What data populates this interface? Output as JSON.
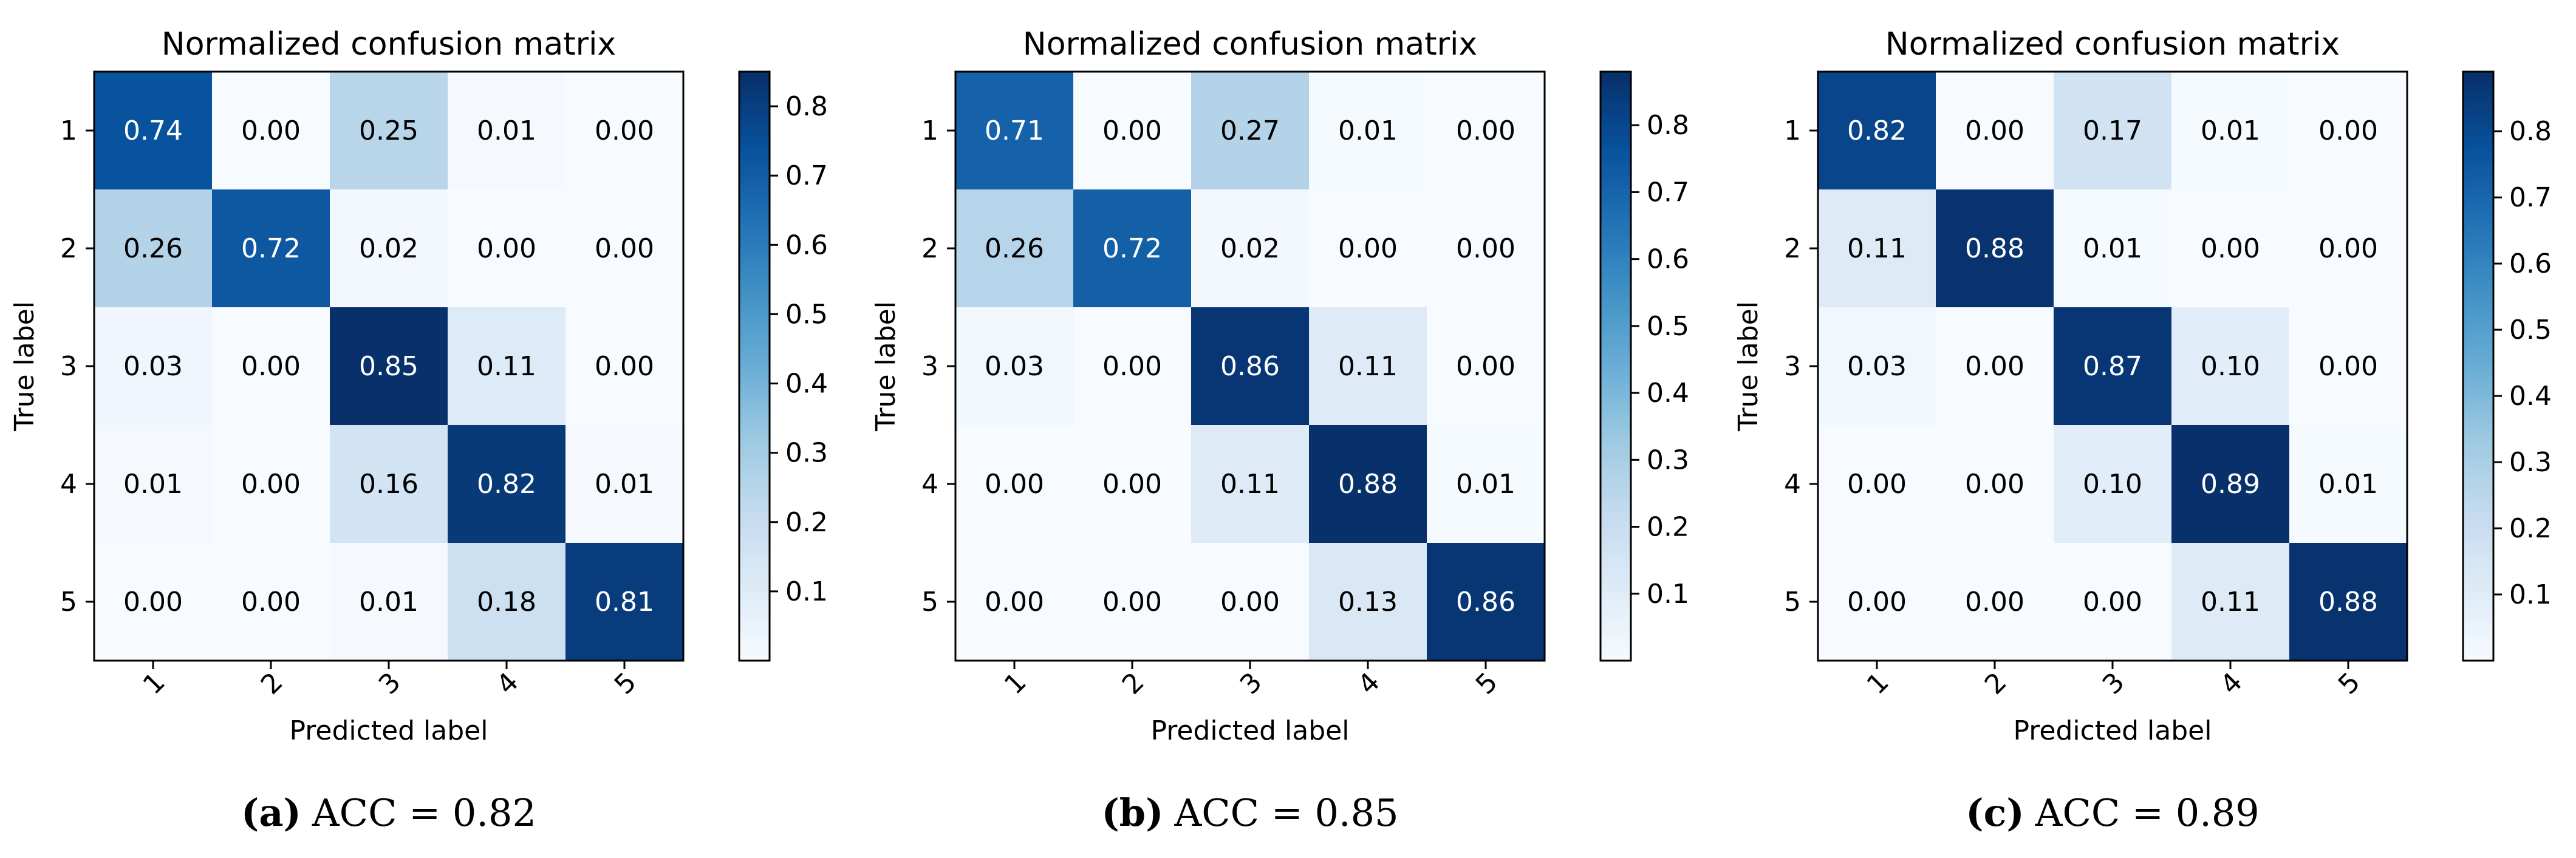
{
  "chart_data": [
    {
      "type": "heatmap",
      "title": "Normalized confusion matrix",
      "xlabel": "Predicted label",
      "ylabel": "True label",
      "x_ticks": [
        "1",
        "2",
        "3",
        "4",
        "5"
      ],
      "y_ticks": [
        "1",
        "2",
        "3",
        "4",
        "5"
      ],
      "matrix": [
        [
          0.74,
          0.0,
          0.25,
          0.01,
          0.0
        ],
        [
          0.26,
          0.72,
          0.02,
          0.0,
          0.0
        ],
        [
          0.03,
          0.0,
          0.85,
          0.11,
          0.0
        ],
        [
          0.01,
          0.0,
          0.16,
          0.82,
          0.01
        ],
        [
          0.0,
          0.0,
          0.01,
          0.18,
          0.81
        ]
      ],
      "cell_labels": [
        [
          "0.74",
          "0.00",
          "0.25",
          "0.01",
          "0.00"
        ],
        [
          "0.26",
          "0.72",
          "0.02",
          "0.00",
          "0.00"
        ],
        [
          "0.03",
          "0.00",
          "0.85",
          "0.11",
          "0.00"
        ],
        [
          "0.01",
          "0.00",
          "0.16",
          "0.82",
          "0.01"
        ],
        [
          "0.00",
          "0.00",
          "0.01",
          "0.18",
          "0.81"
        ]
      ],
      "colorbar": {
        "min": 0.0,
        "max": 0.85,
        "ticks": [
          "0.1",
          "0.2",
          "0.3",
          "0.4",
          "0.5",
          "0.6",
          "0.7",
          "0.8"
        ]
      },
      "colormap": "Blues",
      "grid": false,
      "caption": {
        "letter": "(a)",
        "text": "ACC = 0.82"
      }
    },
    {
      "type": "heatmap",
      "title": "Normalized confusion matrix",
      "xlabel": "Predicted label",
      "ylabel": "True label",
      "x_ticks": [
        "1",
        "2",
        "3",
        "4",
        "5"
      ],
      "y_ticks": [
        "1",
        "2",
        "3",
        "4",
        "5"
      ],
      "matrix": [
        [
          0.71,
          0.0,
          0.27,
          0.01,
          0.0
        ],
        [
          0.26,
          0.72,
          0.02,
          0.0,
          0.0
        ],
        [
          0.03,
          0.0,
          0.86,
          0.11,
          0.0
        ],
        [
          0.0,
          0.0,
          0.11,
          0.88,
          0.01
        ],
        [
          0.0,
          0.0,
          0.0,
          0.13,
          0.86
        ]
      ],
      "cell_labels": [
        [
          "0.71",
          "0.00",
          "0.27",
          "0.01",
          "0.00"
        ],
        [
          "0.26",
          "0.72",
          "0.02",
          "0.00",
          "0.00"
        ],
        [
          "0.03",
          "0.00",
          "0.86",
          "0.11",
          "0.00"
        ],
        [
          "0.00",
          "0.00",
          "0.11",
          "0.88",
          "0.01"
        ],
        [
          "0.00",
          "0.00",
          "0.00",
          "0.13",
          "0.86"
        ]
      ],
      "colorbar": {
        "min": 0.0,
        "max": 0.88,
        "ticks": [
          "0.1",
          "0.2",
          "0.3",
          "0.4",
          "0.5",
          "0.6",
          "0.7",
          "0.8"
        ]
      },
      "colormap": "Blues",
      "grid": false,
      "caption": {
        "letter": "(b)",
        "text": "ACC = 0.85"
      }
    },
    {
      "type": "heatmap",
      "title": "Normalized confusion matrix",
      "xlabel": "Predicted label",
      "ylabel": "True label",
      "x_ticks": [
        "1",
        "2",
        "3",
        "4",
        "5"
      ],
      "y_ticks": [
        "1",
        "2",
        "3",
        "4",
        "5"
      ],
      "matrix": [
        [
          0.82,
          0.0,
          0.17,
          0.01,
          0.0
        ],
        [
          0.11,
          0.88,
          0.01,
          0.0,
          0.0
        ],
        [
          0.03,
          0.0,
          0.87,
          0.1,
          0.0
        ],
        [
          0.0,
          0.0,
          0.1,
          0.89,
          0.01
        ],
        [
          0.0,
          0.0,
          0.0,
          0.11,
          0.88
        ]
      ],
      "cell_labels": [
        [
          "0.82",
          "0.00",
          "0.17",
          "0.01",
          "0.00"
        ],
        [
          "0.11",
          "0.88",
          "0.01",
          "0.00",
          "0.00"
        ],
        [
          "0.03",
          "0.00",
          "0.87",
          "0.10",
          "0.00"
        ],
        [
          "0.00",
          "0.00",
          "0.10",
          "0.89",
          "0.01"
        ],
        [
          "0.00",
          "0.00",
          "0.00",
          "0.11",
          "0.88"
        ]
      ],
      "colorbar": {
        "min": 0.0,
        "max": 0.89,
        "ticks": [
          "0.1",
          "0.2",
          "0.3",
          "0.4",
          "0.5",
          "0.6",
          "0.7",
          "0.8"
        ]
      },
      "colormap": "Blues",
      "grid": false,
      "caption": {
        "letter": "(c)",
        "text": "ACC = 0.89"
      }
    }
  ]
}
